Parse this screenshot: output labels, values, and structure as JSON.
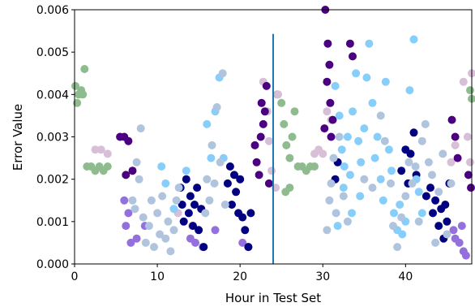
{
  "chart_data": {
    "type": "scatter",
    "title": "",
    "xlabel": "Hour in Test Set",
    "ylabel": "Error Value",
    "xlim": [
      0,
      48
    ],
    "ylim": [
      0,
      0.006
    ],
    "x_ticks": [
      0,
      10,
      20,
      30,
      40
    ],
    "x_tick_labels": [
      "0",
      "10",
      "20",
      "30",
      "40"
    ],
    "y_ticks": [
      0,
      0.001,
      0.002,
      0.003,
      0.004,
      0.005,
      0.006
    ],
    "y_tick_labels": [
      "0.000",
      "0.001",
      "0.002",
      "0.003",
      "0.004",
      "0.005",
      "0.006"
    ],
    "grid": false,
    "vertical_lines": [
      {
        "x": 24,
        "y_range": [
          0,
          0.00543
        ],
        "color": "#1f77b4"
      }
    ],
    "colors": {
      "light_blue": "#87cefa",
      "light_steel_blue": "#b0c4de",
      "navy": "#000080",
      "indigo": "#4b0082",
      "thistle": "#d8bfd8",
      "dark_sea_green": "#8fbc8f",
      "medium_purple": "#9370db"
    },
    "series": [
      {
        "color": "#8fbc8f",
        "points": [
          [
            0.1,
            0.0042
          ],
          [
            0.3,
            0.0038
          ],
          [
            0.5,
            0.004
          ],
          [
            0.8,
            0.0041
          ],
          [
            1.0,
            0.004
          ],
          [
            1.2,
            0.0046
          ],
          [
            1.5,
            0.0023
          ],
          [
            2,
            0.0023
          ],
          [
            2.5,
            0.0022
          ],
          [
            3,
            0.0023
          ],
          [
            3.5,
            0.0022
          ],
          [
            4,
            0.0023
          ],
          [
            24.5,
            0.004
          ],
          [
            25,
            0.0038
          ],
          [
            25.3,
            0.0033
          ],
          [
            25.6,
            0.0028
          ],
          [
            26,
            0.0025
          ],
          [
            26.3,
            0.003
          ],
          [
            26.6,
            0.0036
          ],
          [
            27,
            0.0023
          ],
          [
            27.5,
            0.0023
          ],
          [
            28,
            0.0022
          ],
          [
            28.5,
            0.0023
          ],
          [
            29,
            0.0023
          ],
          [
            25.5,
            0.0017
          ],
          [
            26,
            0.0018
          ],
          [
            47.8,
            0.0041
          ],
          [
            48,
            0.0039
          ]
        ]
      },
      {
        "color": "#d8bfd8",
        "points": [
          [
            2.5,
            0.0027
          ],
          [
            3.2,
            0.0027
          ],
          [
            4,
            0.0026
          ],
          [
            12.5,
            0.0012
          ],
          [
            14.2,
            0.0009
          ],
          [
            22.8,
            0.0043
          ],
          [
            23.3,
            0.0036
          ],
          [
            23.5,
            0.0029
          ],
          [
            23.8,
            0.0022
          ],
          [
            24.3,
            0.0018
          ],
          [
            24.6,
            0.004
          ],
          [
            29,
            0.0026
          ],
          [
            29.5,
            0.0027
          ],
          [
            30,
            0.0026
          ],
          [
            30.5,
            0.0036
          ],
          [
            31,
            0.0034
          ],
          [
            45.5,
            0.0024
          ],
          [
            46,
            0.0028
          ],
          [
            47,
            0.0043
          ],
          [
            47.5,
            0.003
          ],
          [
            47.8,
            0.0024
          ],
          [
            48,
            0.0045
          ]
        ]
      },
      {
        "color": "#4b0082",
        "points": [
          [
            5.5,
            0.003
          ],
          [
            6,
            0.003
          ],
          [
            6.5,
            0.0029
          ],
          [
            6.2,
            0.0021
          ],
          [
            7,
            0.0022
          ],
          [
            21.8,
            0.0028
          ],
          [
            22,
            0.0024
          ],
          [
            22.3,
            0.0021
          ],
          [
            22.5,
            0.003
          ],
          [
            22.8,
            0.0033
          ],
          [
            23,
            0.0036
          ],
          [
            22.6,
            0.0038
          ],
          [
            23.2,
            0.0042
          ],
          [
            23.5,
            0.0019
          ],
          [
            30.3,
            0.006
          ],
          [
            30.6,
            0.0052
          ],
          [
            30.8,
            0.0047
          ],
          [
            30.5,
            0.0043
          ],
          [
            30.9,
            0.0038
          ],
          [
            31,
            0.003
          ],
          [
            30.2,
            0.0032
          ],
          [
            31.2,
            0.0034
          ],
          [
            33.3,
            0.0052
          ],
          [
            33.6,
            0.0049
          ],
          [
            45.6,
            0.0034
          ],
          [
            46,
            0.003
          ],
          [
            46.3,
            0.0025
          ],
          [
            47.6,
            0.0021
          ],
          [
            47.9,
            0.0018
          ]
        ]
      },
      {
        "color": "#9370db",
        "points": [
          [
            6,
            0.0015
          ],
          [
            6.5,
            0.0012
          ],
          [
            6.2,
            0.0009
          ],
          [
            6.8,
            0.0005
          ],
          [
            7.5,
            0.0006
          ],
          [
            8.5,
            0.0009
          ],
          [
            14,
            0.0006
          ],
          [
            14.6,
            0.0005
          ],
          [
            15.5,
            0.0004
          ],
          [
            17,
            0.0008
          ],
          [
            20.3,
            0.0005
          ],
          [
            21,
            0.0004
          ],
          [
            45.8,
            0.0008
          ],
          [
            46,
            0.0006
          ],
          [
            46.5,
            0.0005
          ],
          [
            47,
            0.0003
          ],
          [
            47.3,
            0.0002
          ],
          [
            46.8,
            0.0009
          ]
        ]
      },
      {
        "color": "#000080",
        "points": [
          [
            12.8,
            0.0018
          ],
          [
            13,
            0.0014
          ],
          [
            13.2,
            0.001
          ],
          [
            13.5,
            0.002
          ],
          [
            13.8,
            0.0012
          ],
          [
            14,
            0.0016
          ],
          [
            14.3,
            0.0009
          ],
          [
            14.5,
            0.0014
          ],
          [
            14.8,
            0.0018
          ],
          [
            15,
            0.0008
          ],
          [
            15.3,
            0.0013
          ],
          [
            15.6,
            0.0004
          ],
          [
            18.5,
            0.0019
          ],
          [
            18.8,
            0.0023
          ],
          [
            19,
            0.0014
          ],
          [
            19.3,
            0.0021
          ],
          [
            19.5,
            0.0017
          ],
          [
            19.8,
            0.0012
          ],
          [
            20,
            0.002
          ],
          [
            20.3,
            0.0011
          ],
          [
            20.6,
            0.0008
          ],
          [
            21,
            0.0004
          ],
          [
            21.3,
            0.0012
          ],
          [
            31.5,
            0.002
          ],
          [
            31.8,
            0.0024
          ],
          [
            39.5,
            0.0022
          ],
          [
            40,
            0.0027
          ],
          [
            40.3,
            0.0019
          ],
          [
            40.6,
            0.0026
          ],
          [
            41,
            0.0031
          ],
          [
            41.3,
            0.0021
          ],
          [
            42.5,
            0.0016
          ],
          [
            43,
            0.0018
          ],
          [
            43.3,
            0.0012
          ],
          [
            43.6,
            0.0015
          ],
          [
            44,
            0.0009
          ],
          [
            44.3,
            0.0013
          ],
          [
            44.6,
            0.0006
          ],
          [
            45,
            0.001
          ],
          [
            45.3,
            0.0019
          ],
          [
            44.8,
            0.0014
          ]
        ]
      },
      {
        "color": "#87cefa",
        "points": [
          [
            10.5,
            0.0023
          ],
          [
            11,
            0.0019
          ],
          [
            12,
            0.0013
          ],
          [
            13.5,
            0.0022
          ],
          [
            16,
            0.0033
          ],
          [
            16.5,
            0.0025
          ],
          [
            17,
            0.0036
          ],
          [
            17.5,
            0.0044
          ],
          [
            18,
            0.0025
          ],
          [
            31.5,
            0.0042
          ],
          [
            32,
            0.0035
          ],
          [
            32.3,
            0.0027
          ],
          [
            32.6,
            0.0023
          ],
          [
            33,
            0.003
          ],
          [
            33.3,
            0.0021
          ],
          [
            33.6,
            0.0036
          ],
          [
            34,
            0.0045
          ],
          [
            34.3,
            0.0029
          ],
          [
            34.6,
            0.0024
          ],
          [
            35,
            0.0032
          ],
          [
            35.3,
            0.0044
          ],
          [
            35.6,
            0.0052
          ],
          [
            36,
            0.0038
          ],
          [
            36.3,
            0.0025
          ],
          [
            36.6,
            0.003
          ],
          [
            37,
            0.002
          ],
          [
            37.3,
            0.0015
          ],
          [
            37.6,
            0.0043
          ],
          [
            38,
            0.0027
          ],
          [
            38.3,
            0.0022
          ],
          [
            38.6,
            0.0012
          ],
          [
            39,
            0.0008
          ],
          [
            39.3,
            0.0014
          ],
          [
            39.6,
            0.0007
          ],
          [
            40,
            0.001
          ],
          [
            40.5,
            0.0041
          ],
          [
            41,
            0.0053
          ],
          [
            41.3,
            0.002
          ],
          [
            41.6,
            0.0017
          ],
          [
            42,
            0.0012
          ],
          [
            32.5,
            0.0018
          ],
          [
            33.5,
            0.0012
          ],
          [
            34.5,
            0.0016
          ],
          [
            31.8,
            0.0009
          ]
        ]
      },
      {
        "color": "#b0c4de",
        "points": [
          [
            7,
            0.0015
          ],
          [
            7.3,
            0.0013
          ],
          [
            7.5,
            0.0024
          ],
          [
            7.8,
            0.002
          ],
          [
            8,
            0.0032
          ],
          [
            8.3,
            0.0011
          ],
          [
            8.6,
            0.0005
          ],
          [
            9,
            0.0009
          ],
          [
            9.3,
            0.0015
          ],
          [
            9.6,
            0.0004
          ],
          [
            10,
            0.0012
          ],
          [
            10.3,
            0.0007
          ],
          [
            10.6,
            0.0016
          ],
          [
            11,
            0.0006
          ],
          [
            11.3,
            0.001
          ],
          [
            11.6,
            0.0003
          ],
          [
            12,
            0.0008
          ],
          [
            12.3,
            0.0015
          ],
          [
            12.6,
            0.0018
          ],
          [
            15.8,
            0.0012
          ],
          [
            16,
            0.002
          ],
          [
            16.3,
            0.0015
          ],
          [
            16.6,
            0.0028
          ],
          [
            16.9,
            0.0019
          ],
          [
            17.2,
            0.0037
          ],
          [
            17.6,
            0.0024
          ],
          [
            17.9,
            0.0045
          ],
          [
            18.2,
            0.0014
          ],
          [
            30.5,
            0.0008
          ],
          [
            30.8,
            0.0015
          ],
          [
            31,
            0.0019
          ],
          [
            31.3,
            0.0025
          ],
          [
            31.6,
            0.0012
          ],
          [
            32,
            0.003
          ],
          [
            32.5,
            0.0016
          ],
          [
            33,
            0.001
          ],
          [
            35,
            0.002
          ],
          [
            36,
            0.0018
          ],
          [
            37,
            0.0035
          ],
          [
            37.5,
            0.0029
          ],
          [
            38.2,
            0.0019
          ],
          [
            38.5,
            0.0009
          ],
          [
            39,
            0.0004
          ],
          [
            39.5,
            0.0011
          ],
          [
            40,
            0.0016
          ],
          [
            40.4,
            0.0024
          ],
          [
            40.8,
            0.0019
          ],
          [
            41.2,
            0.0023
          ],
          [
            41.6,
            0.001
          ],
          [
            42,
            0.0029
          ],
          [
            42.4,
            0.0033
          ],
          [
            42.8,
            0.0024
          ],
          [
            43.2,
            0.0021
          ],
          [
            43.6,
            0.0005
          ],
          [
            44,
            0.0017
          ],
          [
            44.5,
            0.0026
          ],
          [
            45,
            0.0007
          ],
          [
            45.5,
            0.0019
          ]
        ]
      }
    ]
  }
}
